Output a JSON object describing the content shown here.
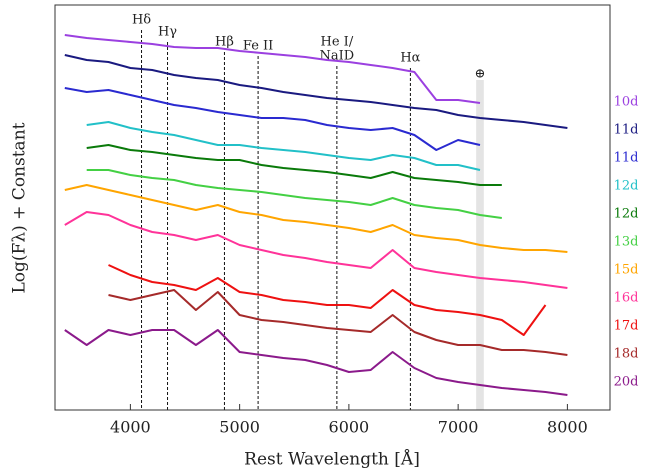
{
  "chart_data": {
    "type": "line",
    "xlabel": "Rest Wavelength [Å]",
    "ylabel": "Log(Fλ) + Constant",
    "x": [
      3400,
      3600,
      3800,
      4000,
      4200,
      4400,
      4600,
      4800,
      5000,
      5200,
      5400,
      5600,
      5800,
      6000,
      6200,
      6400,
      6600,
      6800,
      7000,
      7200,
      7400,
      7600,
      7800,
      8000,
      8200
    ],
    "xlim": [
      3310,
      8390
    ],
    "xticks": [
      4000,
      5000,
      6000,
      7000,
      8000
    ],
    "ylim": [
      0,
      405
    ],
    "series": [
      {
        "name": "10d",
        "color": "#9b40e0",
        "values": [
          375,
          372,
          370,
          368,
          366,
          363,
          362,
          362,
          359,
          357,
          355,
          353,
          350,
          348,
          345,
          342,
          338,
          310,
          310,
          307,
          null,
          null,
          null,
          null,
          null
        ]
      },
      {
        "name": "11d",
        "color": "#1a1a80",
        "values": [
          355,
          350,
          348,
          342,
          340,
          335,
          332,
          330,
          325,
          322,
          318,
          315,
          312,
          310,
          308,
          305,
          302,
          300,
          295,
          292,
          290,
          288,
          285,
          282,
          null
        ]
      },
      {
        "name": "11d",
        "color": "#2a2ad0",
        "values": [
          322,
          318,
          320,
          315,
          310,
          305,
          302,
          298,
          295,
          292,
          292,
          290,
          285,
          282,
          280,
          282,
          275,
          260,
          270,
          265,
          null,
          null,
          null,
          null,
          null
        ]
      },
      {
        "name": "12d",
        "color": "#22c0c8",
        "values": [
          null,
          285,
          288,
          282,
          278,
          275,
          270,
          265,
          265,
          262,
          260,
          258,
          255,
          252,
          250,
          255,
          252,
          245,
          245,
          240,
          null,
          null,
          null,
          null,
          null
        ]
      },
      {
        "name": "12d",
        "color": "#0a7a0a",
        "values": [
          null,
          262,
          265,
          260,
          258,
          255,
          252,
          250,
          250,
          245,
          242,
          240,
          238,
          235,
          232,
          238,
          232,
          230,
          228,
          225,
          225,
          null,
          null,
          null,
          null
        ]
      },
      {
        "name": "13d",
        "color": "#44d044",
        "values": [
          null,
          240,
          240,
          235,
          232,
          230,
          225,
          222,
          220,
          218,
          215,
          212,
          210,
          208,
          205,
          212,
          205,
          202,
          200,
          195,
          192,
          null,
          null,
          null,
          null
        ]
      },
      {
        "name": "15d",
        "color": "#ffa500",
        "values": [
          220,
          225,
          220,
          215,
          210,
          205,
          200,
          205,
          198,
          195,
          190,
          188,
          185,
          182,
          178,
          185,
          175,
          172,
          170,
          165,
          162,
          160,
          160,
          158,
          null
        ]
      },
      {
        "name": "16d",
        "color": "#ff3399",
        "values": [
          185,
          198,
          195,
          185,
          178,
          175,
          170,
          175,
          165,
          160,
          155,
          152,
          148,
          145,
          142,
          160,
          142,
          138,
          135,
          132,
          130,
          128,
          125,
          122,
          null
        ]
      },
      {
        "name": "17d",
        "color": "#ee1111",
        "values": [
          null,
          null,
          145,
          135,
          128,
          125,
          120,
          132,
          118,
          115,
          110,
          108,
          105,
          105,
          102,
          120,
          105,
          100,
          98,
          95,
          90,
          75,
          105,
          null,
          null
        ]
      },
      {
        "name": "18d",
        "color": "#a52a2a",
        "values": [
          null,
          null,
          115,
          110,
          115,
          120,
          100,
          118,
          95,
          90,
          88,
          85,
          82,
          80,
          78,
          95,
          78,
          70,
          65,
          65,
          60,
          60,
          58,
          55,
          null
        ]
      },
      {
        "name": "20d",
        "color": "#8b1a8b",
        "values": [
          80,
          65,
          80,
          75,
          80,
          80,
          65,
          80,
          58,
          55,
          52,
          50,
          45,
          38,
          40,
          58,
          42,
          32,
          28,
          25,
          22,
          20,
          18,
          15,
          null
        ]
      }
    ],
    "annotations": [
      {
        "x": 4102,
        "lines": [
          "Hδ"
        ]
      },
      {
        "x": 4340,
        "lines": [
          "Hγ"
        ]
      },
      {
        "x": 4861,
        "lines": [
          "Hβ"
        ]
      },
      {
        "x": 5169,
        "lines": [
          "Fe II"
        ]
      },
      {
        "x": 5890,
        "lines": [
          "He I/",
          "NaID"
        ]
      },
      {
        "x": 6563,
        "lines": [
          "Hα"
        ]
      }
    ],
    "telluric": {
      "range": [
        7165,
        7235
      ],
      "label": "⊕"
    }
  }
}
